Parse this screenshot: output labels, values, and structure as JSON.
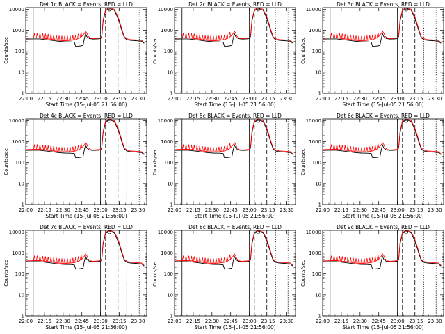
{
  "chart_data": {
    "type": "line",
    "layout": "3x3 grid",
    "xlabel": "Start Time (15-Jul-05 21:56:00)",
    "ylabel": "Counts/sec",
    "x_ticks": [
      "22:00",
      "22:15",
      "22:30",
      "22:45",
      "23:00",
      "23:15",
      "23:30"
    ],
    "y_ticks": [
      "1",
      "10",
      "100",
      "1000",
      "10000"
    ],
    "y_scale": "log",
    "ylim": [
      1,
      12000
    ],
    "xlim_minutes": [
      4,
      101
    ],
    "series_colors": {
      "events": "#000000",
      "lld": "#ff0000"
    },
    "markers": {
      "solid": [
        10,
        64
      ],
      "dashed": [
        68,
        78
      ],
      "dotted": [
        85,
        95
      ]
    },
    "lld_curve": [
      [
        4,
        420
      ],
      [
        10,
        430
      ],
      [
        15,
        435
      ],
      [
        20,
        400
      ],
      [
        25,
        370
      ],
      [
        30,
        330
      ],
      [
        35,
        315
      ],
      [
        40,
        330
      ],
      [
        44,
        360
      ],
      [
        47,
        420
      ],
      [
        49,
        520
      ],
      [
        51,
        700
      ],
      [
        52,
        900
      ],
      [
        53,
        750
      ],
      [
        54,
        520
      ],
      [
        56,
        420
      ],
      [
        58,
        400
      ],
      [
        62,
        420
      ],
      [
        64,
        430
      ],
      [
        65,
        550
      ],
      [
        66,
        3000
      ],
      [
        68,
        9500
      ],
      [
        70,
        11000
      ],
      [
        72,
        11500
      ],
      [
        75,
        10000
      ],
      [
        77,
        6000
      ],
      [
        79,
        3000
      ],
      [
        81,
        1200
      ],
      [
        83,
        500
      ],
      [
        85,
        400
      ],
      [
        88,
        360
      ],
      [
        92,
        350
      ],
      [
        95,
        340
      ],
      [
        97,
        330
      ],
      [
        98,
        290
      ],
      [
        99,
        260
      ]
    ],
    "events_curve": [
      [
        4,
        380
      ],
      [
        10,
        390
      ],
      [
        15,
        390
      ],
      [
        20,
        360
      ],
      [
        25,
        330
      ],
      [
        30,
        300
      ],
      [
        35,
        285
      ],
      [
        40,
        280
      ],
      [
        43,
        270
      ],
      [
        44,
        170
      ],
      [
        46,
        175
      ],
      [
        48,
        180
      ],
      [
        50,
        190
      ],
      [
        51,
        400
      ],
      [
        52,
        700
      ],
      [
        53,
        500
      ],
      [
        55,
        400
      ],
      [
        58,
        380
      ],
      [
        62,
        390
      ],
      [
        64,
        400
      ],
      [
        65,
        500
      ],
      [
        66,
        2500
      ],
      [
        68,
        8500
      ],
      [
        70,
        10000
      ],
      [
        72,
        10500
      ],
      [
        75,
        9000
      ],
      [
        77,
        5000
      ],
      [
        79,
        2500
      ],
      [
        81,
        1000
      ],
      [
        83,
        450
      ],
      [
        85,
        360
      ],
      [
        88,
        330
      ],
      [
        92,
        320
      ],
      [
        95,
        310
      ],
      [
        97,
        300
      ],
      [
        98,
        260
      ],
      [
        99,
        240
      ]
    ],
    "panels": [
      {
        "title": "Det  1c BLACK = Events, RED = LLD"
      },
      {
        "title": "Det  2c BLACK = Events, RED = LLD"
      },
      {
        "title": "Det  3c BLACK = Events, RED = LLD"
      },
      {
        "title": "Det  4c BLACK = Events, RED = LLD"
      },
      {
        "title": "Det  5c BLACK = Events, RED = LLD"
      },
      {
        "title": "Det  6c BLACK = Events, RED = LLD"
      },
      {
        "title": "Det  7c BLACK = Events, RED = LLD"
      },
      {
        "title": "Det  8c BLACK = Events, RED = LLD"
      },
      {
        "title": "Det  9c BLACK = Events, RED = LLD"
      }
    ]
  }
}
